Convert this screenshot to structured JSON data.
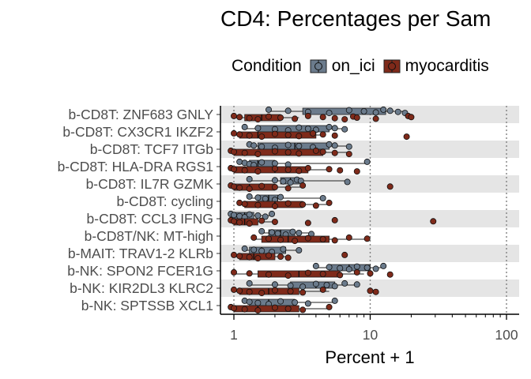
{
  "chart_data": {
    "type": "box",
    "orientation": "horizontal",
    "title": "CD4: Percentages per Sam",
    "xlabel": "Percent + 1",
    "ylabel": "",
    "x_scale": "log10",
    "xlim": [
      0.85,
      120
    ],
    "x_ticks": [
      1,
      10,
      100
    ],
    "x_tick_labels": [
      "1",
      "10",
      "100"
    ],
    "grid": "vertical dotted lines at major ticks; alternating grey row bands",
    "legend": {
      "title": "Condition",
      "position": "top",
      "items": [
        {
          "key": "on_ici",
          "label": "on_ici",
          "color": "#6b7b8c"
        },
        {
          "key": "myocarditis",
          "label": "myocarditis",
          "color": "#7f2a1a"
        }
      ]
    },
    "colors": {
      "on_ici": "#6b7b8c",
      "myocarditis": "#7f2a1a",
      "band": "#e5e5e5"
    },
    "categories": [
      "b-CD8T: ZNF683 GNLY",
      "b-CD8T: CX3CR1 IKZF2",
      "b-CD8T: TCF7 ITGb",
      "b-CD8T: HLA-DRA RGS1",
      "b-CD8T: IL7R GZMK",
      "b-CD8T: cycling",
      "b-CD8T: CCL3 IFNG",
      "b-CD8T/NK: MT-high",
      "b-MAIT: TRAV1-2 KLRb",
      "b-NK: SPON2 FCER1G",
      "b-NK: KIR2DL3 KLRC2",
      "b-NK: SPTSSB XCL1"
    ],
    "series": [
      {
        "name": "on_ici",
        "data": [
          {
            "q1": 3.2,
            "median": 9.0,
            "q3": 13.0,
            "min": 1.8,
            "max": 18.0,
            "points": [
              1.8,
              2.5,
              3.5,
              5.0,
              7.0,
              9.0,
              11.0,
              12.5,
              14.0,
              16.0,
              18.0
            ]
          },
          {
            "q1": 1.5,
            "median": 3.5,
            "q3": 5.0,
            "min": 1.2,
            "max": 6.5,
            "points": [
              1.2,
              1.5,
              2.0,
              2.5,
              3.0,
              3.5,
              4.0,
              5.0,
              5.5,
              6.5
            ]
          },
          {
            "q1": 1.5,
            "median": 2.8,
            "q3": 5.0,
            "min": 1.3,
            "max": 7.0,
            "points": [
              1.3,
              1.4,
              1.6,
              2.0,
              2.5,
              3.0,
              3.8,
              5.0,
              5.5,
              7.0
            ]
          },
          {
            "q1": 1.3,
            "median": 1.5,
            "q3": 2.0,
            "min": 1.1,
            "max": 9.5,
            "points": [
              1.1,
              1.2,
              1.3,
              1.4,
              1.6,
              2.0,
              2.5,
              9.5
            ]
          },
          {
            "q1": 2.2,
            "median": 2.6,
            "q3": 3.0,
            "min": 1.3,
            "max": 6.8,
            "points": [
              1.3,
              2.0,
              2.3,
              2.6,
              2.9,
              3.1,
              6.8
            ]
          },
          {
            "q1": 1.5,
            "median": 1.8,
            "q3": 2.1,
            "min": 1.3,
            "max": 4.5,
            "points": [
              1.3,
              1.5,
              1.7,
              2.0,
              2.2,
              4.5
            ]
          },
          {
            "q1": 1.0,
            "median": 1.2,
            "q3": 1.4,
            "min": 0.95,
            "max": 1.9,
            "points": [
              0.95,
              1.0,
              1.1,
              1.2,
              1.3,
              1.5,
              1.7,
              1.9
            ]
          },
          {
            "q1": 1.8,
            "median": 2.2,
            "q3": 2.8,
            "min": 1.6,
            "max": 3.7,
            "points": [
              1.6,
              1.9,
              2.1,
              2.4,
              2.7,
              3.0,
              3.7
            ]
          },
          {
            "q1": 1.3,
            "median": 1.6,
            "q3": 2.4,
            "min": 1.2,
            "max": 3.0,
            "points": [
              1.2,
              1.4,
              1.6,
              1.9,
              2.3,
              3.0
            ]
          },
          {
            "q1": 5.0,
            "median": 7.0,
            "q3": 10.0,
            "min": 4.0,
            "max": 12.5,
            "points": [
              4.0,
              5.0,
              6.0,
              7.0,
              8.0,
              9.5,
              11.0,
              12.5
            ]
          },
          {
            "q1": 2.6,
            "median": 4.0,
            "q3": 5.5,
            "min": 1.3,
            "max": 8.0,
            "points": [
              1.3,
              2.0,
              2.6,
              3.2,
              4.0,
              4.8,
              5.5,
              6.5,
              8.0
            ]
          },
          {
            "q1": 1.3,
            "median": 1.8,
            "q3": 2.8,
            "min": 1.2,
            "max": 5.5,
            "points": [
              1.2,
              1.3,
              1.5,
              1.8,
              2.2,
              2.8,
              3.5,
              5.5
            ]
          }
        ]
      },
      {
        "name": "myocarditis",
        "data": [
          {
            "q1": 1.2,
            "median": 1.6,
            "q3": 2.2,
            "min": 1.0,
            "max": 3.0,
            "points": [
              1.0,
              1.1,
              1.3,
              1.5,
              1.8,
              2.2,
              2.8,
              3.5,
              4.5,
              5.5,
              6.5,
              7.5,
              8.0,
              11.0,
              19.0,
              20.0
            ]
          },
          {
            "q1": 1.1,
            "median": 1.5,
            "q3": 4.0,
            "min": 1.0,
            "max": 4.5,
            "points": [
              1.0,
              1.1,
              1.3,
              1.6,
              2.0,
              2.5,
              3.0,
              3.8,
              4.5,
              5.5,
              18.5
            ]
          },
          {
            "q1": 1.0,
            "median": 2.5,
            "q3": 4.5,
            "min": 0.95,
            "max": 7.0,
            "points": [
              0.95,
              1.0,
              1.2,
              1.5,
              2.0,
              2.5,
              3.0,
              4.0,
              4.5,
              5.5,
              7.0
            ]
          },
          {
            "q1": 1.0,
            "median": 2.0,
            "q3": 3.5,
            "min": 0.95,
            "max": 5.0,
            "points": [
              0.95,
              1.0,
              1.2,
              1.5,
              2.0,
              2.5,
              3.0,
              3.5,
              5.0,
              6.0,
              8.0
            ]
          },
          {
            "q1": 1.0,
            "median": 1.3,
            "q3": 2.0,
            "min": 0.95,
            "max": 3.2,
            "points": [
              0.95,
              1.0,
              1.1,
              1.3,
              1.6,
              2.0,
              2.5,
              3.2,
              14.0
            ]
          },
          {
            "q1": 1.2,
            "median": 2.0,
            "q3": 3.2,
            "min": 1.1,
            "max": 5.0,
            "points": [
              1.1,
              1.2,
              1.5,
              2.0,
              2.5,
              3.2,
              4.0,
              5.0
            ]
          },
          {
            "q1": 1.0,
            "median": 1.2,
            "q3": 1.5,
            "min": 0.95,
            "max": 2.0,
            "points": [
              0.95,
              1.0,
              1.1,
              1.3,
              1.6,
              2.0,
              3.5,
              5.5,
              29.0
            ]
          },
          {
            "q1": 1.6,
            "median": 2.5,
            "q3": 5.0,
            "min": 1.4,
            "max": 9.5,
            "points": [
              1.4,
              1.8,
              2.2,
              2.8,
              3.5,
              4.5,
              5.5,
              7.0,
              9.5
            ]
          },
          {
            "q1": 1.1,
            "median": 1.4,
            "q3": 2.0,
            "min": 1.0,
            "max": 2.5,
            "points": [
              1.0,
              1.1,
              1.3,
              1.5,
              1.8,
              2.2,
              2.5,
              6.5
            ]
          },
          {
            "q1": 1.5,
            "median": 3.0,
            "q3": 6.0,
            "min": 1.0,
            "max": 9.0,
            "points": [
              1.0,
              1.3,
              1.8,
              2.5,
              3.5,
              4.5,
              6.0,
              8.0,
              10.0,
              14.0
            ]
          },
          {
            "q1": 1.1,
            "median": 1.8,
            "q3": 3.0,
            "min": 1.0,
            "max": 5.0,
            "points": [
              1.0,
              1.1,
              1.3,
              1.6,
              2.0,
              2.6,
              3.2,
              4.5,
              10.0,
              11.0
            ]
          },
          {
            "q1": 1.0,
            "median": 1.5,
            "q3": 3.0,
            "min": 0.95,
            "max": 5.0,
            "points": [
              0.95,
              1.0,
              1.2,
              1.5,
              2.0,
              2.5,
              3.2,
              5.0
            ]
          }
        ]
      }
    ]
  }
}
